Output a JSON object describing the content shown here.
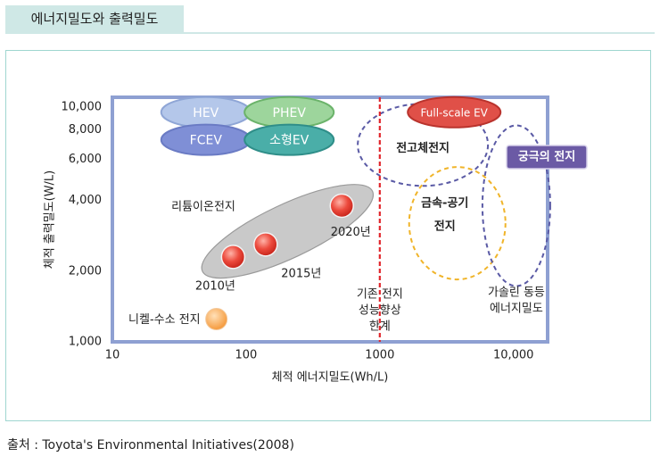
{
  "page": {
    "title": "에너지밀도와 출력밀도",
    "source": "출처 : Toyota's Environmental Initiatives(2008)"
  },
  "colors": {
    "accent": "#cfe8e6",
    "frame": "#9fd6d0",
    "plot_border": "#8ea0d2",
    "limit_line": "#e1262c",
    "hev": "#b4c7ea",
    "phev": "#9dd59c",
    "fcev": "#7f8fd6",
    "small_ev": "#4aaea8",
    "lithium_blob": "#c9c9c9",
    "lithium_point": "#e8453c",
    "nimh": "#f7b267",
    "full_ev": "#e05048",
    "solid_state": "#5a5aa5",
    "metal_air": "#f0b429",
    "ultimate_label_bg": "#6b5aa5"
  },
  "chart_data": {
    "type": "scatter",
    "xlabel": "체적 에너지밀도(Wh/L)",
    "ylabel": "체적 출력밀도(W/L)",
    "x_scale": "log",
    "y_scale": "log",
    "xlim": [
      10,
      18000
    ],
    "ylim": [
      1000,
      11000
    ],
    "x_ticks": [
      {
        "v": 10,
        "label": "10"
      },
      {
        "v": 100,
        "label": "100"
      },
      {
        "v": 1000,
        "label": "1000"
      },
      {
        "v": 10000,
        "label": "10,000"
      }
    ],
    "y_ticks": [
      {
        "v": 1000,
        "label": "1,000"
      },
      {
        "v": 2000,
        "label": "2,000"
      },
      {
        "v": 4000,
        "label": "4,000"
      },
      {
        "v": 6000,
        "label": "6,000"
      },
      {
        "v": 8000,
        "label": "8,000"
      },
      {
        "v": 10000,
        "label": "10,000"
      }
    ],
    "grid": false,
    "limit_line": {
      "x": 1000,
      "label_lines": [
        "기존 전지",
        "성능향상",
        "한계"
      ]
    },
    "vehicles": [
      {
        "key": "hev",
        "label": "HEV",
        "x": 50,
        "y": 9500
      },
      {
        "key": "phev",
        "label": "PHEV",
        "x": 210,
        "y": 9500
      },
      {
        "key": "fcev",
        "label": "FCEV",
        "x": 50,
        "y": 7250
      },
      {
        "key": "small_ev",
        "label": "소형EV",
        "x": 210,
        "y": 7250
      },
      {
        "key": "full_ev",
        "label": "Full-scale EV",
        "x": 3600,
        "y": 9500
      }
    ],
    "lithium": {
      "label": "리튬이온전지",
      "points": [
        {
          "x": 80,
          "y": 2300,
          "label": "2010년"
        },
        {
          "x": 140,
          "y": 2600,
          "label": "2015년"
        },
        {
          "x": 520,
          "y": 3800,
          "label": "2020년"
        }
      ]
    },
    "nimh": {
      "label": "니켈-수소 전지",
      "x": 60,
      "y": 1250
    },
    "regions": [
      {
        "key": "solid_state",
        "label_lines": [
          "전고체전지"
        ],
        "x": 2100,
        "y": 6900
      },
      {
        "key": "metal_air",
        "label_lines": [
          "금속-공기",
          "전지"
        ],
        "x": 3800,
        "y": 3200
      },
      {
        "key": "ultimate",
        "label_lines": [
          "가솔린 동등",
          "에너지밀도"
        ],
        "x": 10500,
        "y": 3800
      }
    ],
    "ultimate_label": "궁극의 전지"
  }
}
